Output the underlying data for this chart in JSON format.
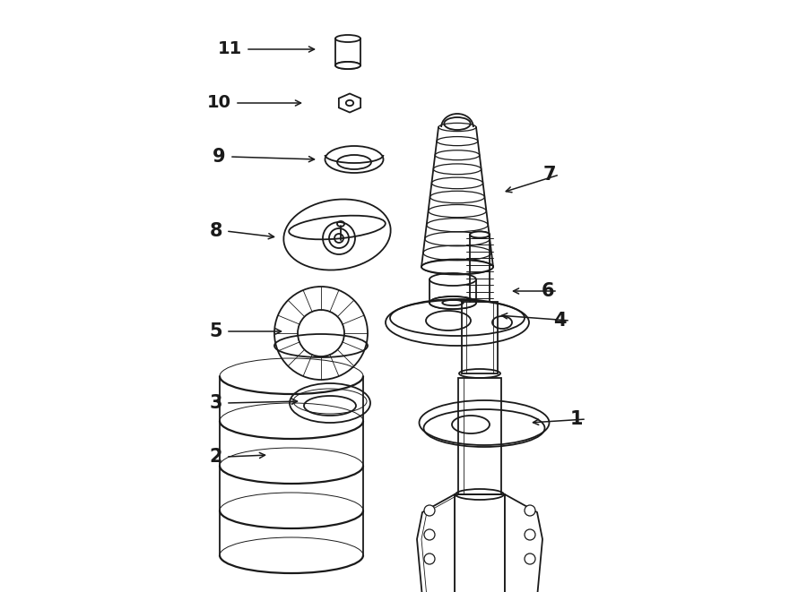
{
  "bg_color": "#ffffff",
  "line_color": "#1a1a1a",
  "fig_width": 9.0,
  "fig_height": 6.61,
  "dpi": 100,
  "arrow_data": [
    [
      "11",
      270,
      55,
      355,
      55
    ],
    [
      "10",
      258,
      115,
      340,
      115
    ],
    [
      "9",
      252,
      175,
      355,
      178
    ],
    [
      "8",
      248,
      258,
      310,
      265
    ],
    [
      "7",
      620,
      195,
      560,
      215
    ],
    [
      "6",
      618,
      325,
      568,
      325
    ],
    [
      "5",
      248,
      370,
      318,
      370
    ],
    [
      "4",
      632,
      358,
      555,
      352
    ],
    [
      "3",
      248,
      450,
      336,
      448
    ],
    [
      "2",
      248,
      510,
      300,
      508
    ],
    [
      "1",
      650,
      468,
      590,
      472
    ]
  ]
}
